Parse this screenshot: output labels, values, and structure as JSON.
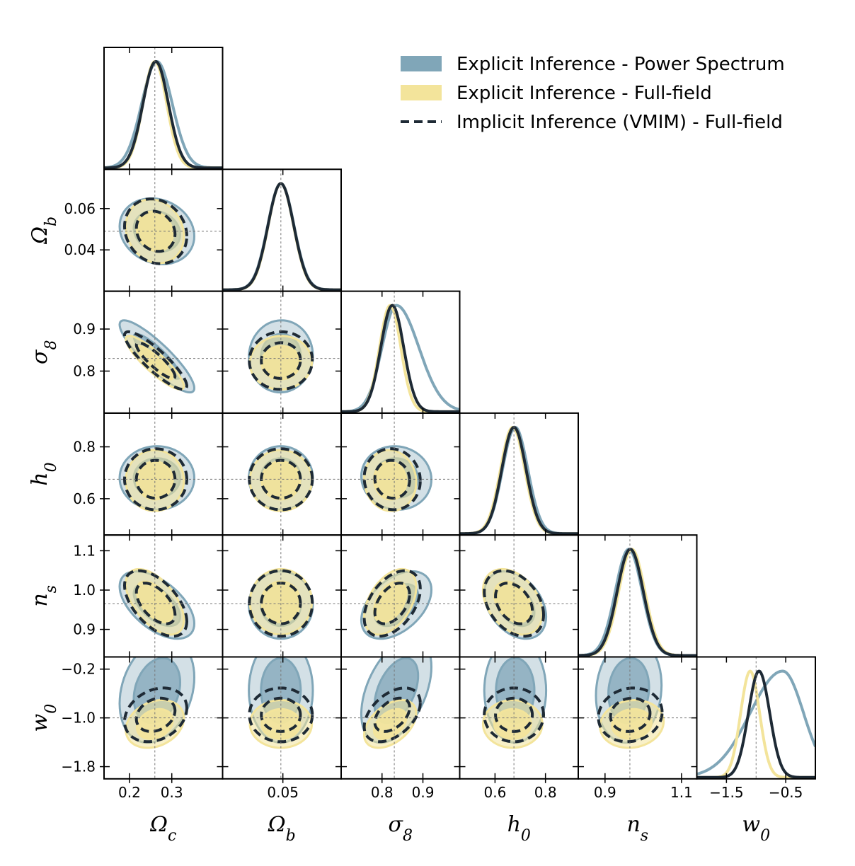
{
  "chart_data": {
    "type": "corner",
    "parameters": [
      {
        "key": "oc",
        "symbol": "Ω",
        "sub": "c",
        "truth": 0.26,
        "range": [
          0.14,
          0.42
        ],
        "ticks": [
          0.2,
          0.3
        ],
        "tick_labels": [
          "0.2",
          "0.3"
        ]
      },
      {
        "key": "ob",
        "symbol": "Ω",
        "sub": "b",
        "truth": 0.049,
        "range": [
          0.02,
          0.079
        ],
        "ticks": [
          0.05
        ],
        "tick_labels": [
          "0.05"
        ],
        "y_ticks": [
          0.04,
          0.06
        ],
        "y_tick_labels": [
          "0.04",
          "0.06"
        ]
      },
      {
        "key": "s8",
        "symbol": "σ",
        "sub": "8",
        "truth": 0.83,
        "range": [
          0.7,
          0.99
        ],
        "ticks": [
          0.8,
          0.9
        ],
        "tick_labels": [
          "0.8",
          "0.9"
        ]
      },
      {
        "key": "h0",
        "symbol": "h",
        "sub": "0",
        "truth": 0.675,
        "range": [
          0.46,
          0.93
        ],
        "ticks": [
          0.6,
          0.8
        ],
        "tick_labels": [
          "0.6",
          "0.8"
        ]
      },
      {
        "key": "ns",
        "symbol": "n",
        "sub": "s",
        "truth": 0.965,
        "range": [
          0.83,
          1.14
        ],
        "ticks": [
          0.9,
          1.1
        ],
        "tick_labels": [
          "0.9",
          "1.1"
        ],
        "y_ticks": [
          0.9,
          1.0,
          1.1
        ],
        "y_tick_labels": [
          "0.9",
          "1.0",
          "1.1"
        ]
      },
      {
        "key": "w0",
        "symbol": "w",
        "sub": "0",
        "truth": -1.0,
        "range": [
          -2.0,
          -0.0
        ],
        "ticks": [
          -1.5,
          -0.5
        ],
        "tick_labels": [
          "−1.5",
          "−0.5"
        ],
        "y_ticks": [
          -0.2,
          -1.0,
          -1.8
        ],
        "y_tick_labels": [
          "−0.2",
          "−1.0",
          "−1.8"
        ]
      }
    ],
    "series": [
      {
        "name": "Explicit Inference - Power Spectrum",
        "color": "#80a6b8",
        "style": "filled"
      },
      {
        "name": "Explicit Inference - Full-field",
        "color": "#f3e49b",
        "style": "filled"
      },
      {
        "name": "Implicit Inference (VMIM) - Full-field",
        "color": "#1e2a35",
        "style": "dashed"
      }
    ],
    "marginals": [
      {
        "param": "oc",
        "ps": {
          "mean": 0.265,
          "sd": 0.036
        },
        "ff": {
          "mean": 0.26,
          "sd": 0.028
        },
        "vmim": {
          "mean": 0.262,
          "sd": 0.03
        }
      },
      {
        "param": "ob",
        "ps": {
          "mean": 0.049,
          "sd": 0.0065
        },
        "ff": {
          "mean": 0.049,
          "sd": 0.0063
        },
        "vmim": {
          "mean": 0.049,
          "sd": 0.0064
        }
      },
      {
        "param": "s8",
        "ps": {
          "mean": 0.835,
          "sd": 0.035,
          "skew_right": 0.055
        },
        "ff": {
          "mean": 0.82,
          "sd": 0.026
        },
        "vmim": {
          "mean": 0.825,
          "sd": 0.028
        }
      },
      {
        "param": "h0",
        "ps": {
          "mean": 0.68,
          "sd": 0.05
        },
        "ff": {
          "mean": 0.67,
          "sd": 0.048
        },
        "vmim": {
          "mean": 0.675,
          "sd": 0.048
        }
      },
      {
        "param": "ns",
        "ps": {
          "mean": 0.962,
          "sd": 0.035
        },
        "ff": {
          "mean": 0.97,
          "sd": 0.034
        },
        "vmim": {
          "mean": 0.966,
          "sd": 0.034
        }
      },
      {
        "param": "w0",
        "ps": {
          "mean": -0.55,
          "sd": 0.35,
          "skew_left": 0.55
        },
        "ff": {
          "mean": -1.1,
          "sd": 0.16
        },
        "vmim": {
          "mean": -0.95,
          "sd": 0.18
        }
      }
    ],
    "legend_position": "top-right",
    "truth_line_style": "dotted-grey"
  }
}
